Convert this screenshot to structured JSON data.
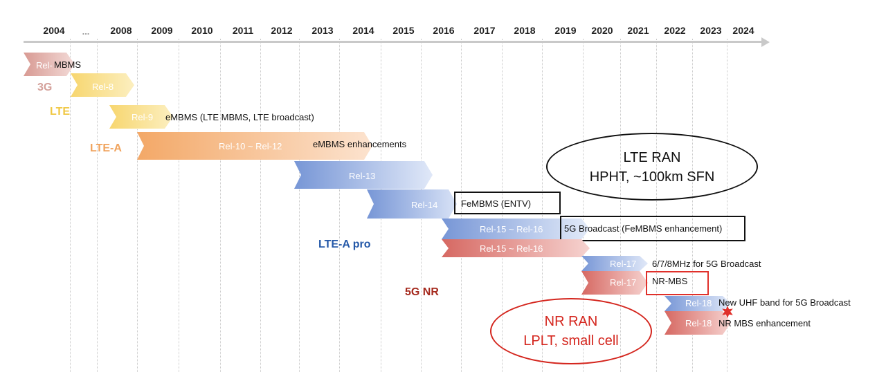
{
  "years": [
    "2004",
    "...",
    "2008",
    "2009",
    "2010",
    "2011",
    "2012",
    "2013",
    "2014",
    "2015",
    "2016",
    "2017",
    "2018",
    "2019",
    "2020",
    "2021",
    "2022",
    "2023",
    "2024"
  ],
  "generations": {
    "g3": "3G",
    "lte": "LTE",
    "lte_a": "LTE-A",
    "lte_a_pro": "LTE-A pro",
    "nr": "5G NR"
  },
  "releases": {
    "r_3g": "Rel-",
    "r8": "Rel-8",
    "r9": "Rel-9",
    "r10_12": "Rel-10 ~ Rel-12",
    "r13": "Rel-13",
    "r14": "Rel-14",
    "r15_16_lte": "Rel-15 ~ Rel-16",
    "r15_16_nr": "Rel-15 ~ Rel-16",
    "r17_lte": "Rel-17",
    "r17_nr": "Rel-17",
    "r18_lte": "Rel-18",
    "r18_nr": "Rel-18"
  },
  "features": {
    "mbms": "MBMS",
    "embms": "eMBMS (LTE MBMS, LTE broadcast)",
    "embms_enh": "eMBMS enhancements",
    "fembms": "FeMBMS (ENTV)",
    "broadcast_5g": "5G Broadcast (FeMBMS enhancement)",
    "mhz": "6/7/8MHz for 5G Broadcast",
    "nr_mbs": "NR-MBS",
    "uhf": "New UHF band for 5G Broadcast",
    "nr_mbs_enh": "NR MBS enhancement"
  },
  "callouts": {
    "lte_ran_title": "LTE RAN",
    "lte_ran_sub": "HPHT, ~100km SFN",
    "nr_ran_title": "NR RAN",
    "nr_ran_sub": "LPLT, small cell"
  },
  "colors": {
    "g3": "#d4a09a",
    "lte": "#f0c845",
    "lte_a": "#f0a35d",
    "lte_a_pro": "#2458a8",
    "nr": "#a52a1e",
    "lte_blue": "#7f9bd8",
    "nr_red": "#d1605d",
    "accent_red": "#e0302a"
  }
}
